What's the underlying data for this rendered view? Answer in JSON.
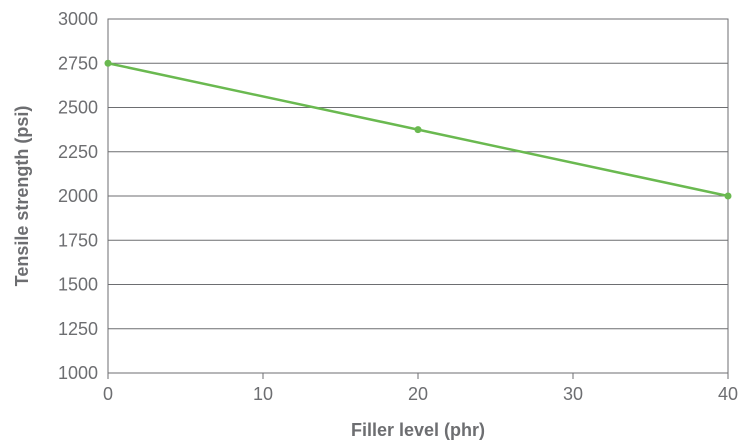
{
  "chart_data": {
    "type": "line",
    "title": "",
    "xlabel": "Filler level (phr)",
    "ylabel": "Tensile strength (psi)",
    "xlim": [
      0,
      40
    ],
    "ylim": [
      1000,
      3000
    ],
    "xticks": [
      0,
      10,
      20,
      30,
      40
    ],
    "yticks": [
      1000,
      1250,
      1500,
      1750,
      2000,
      2250,
      2500,
      2750,
      3000
    ],
    "grid": "horizontal",
    "legend": "none",
    "series": [
      {
        "color": "#6ab950",
        "x": [
          0,
          20,
          40
        ],
        "y": [
          2750,
          2375,
          2000
        ]
      }
    ]
  }
}
